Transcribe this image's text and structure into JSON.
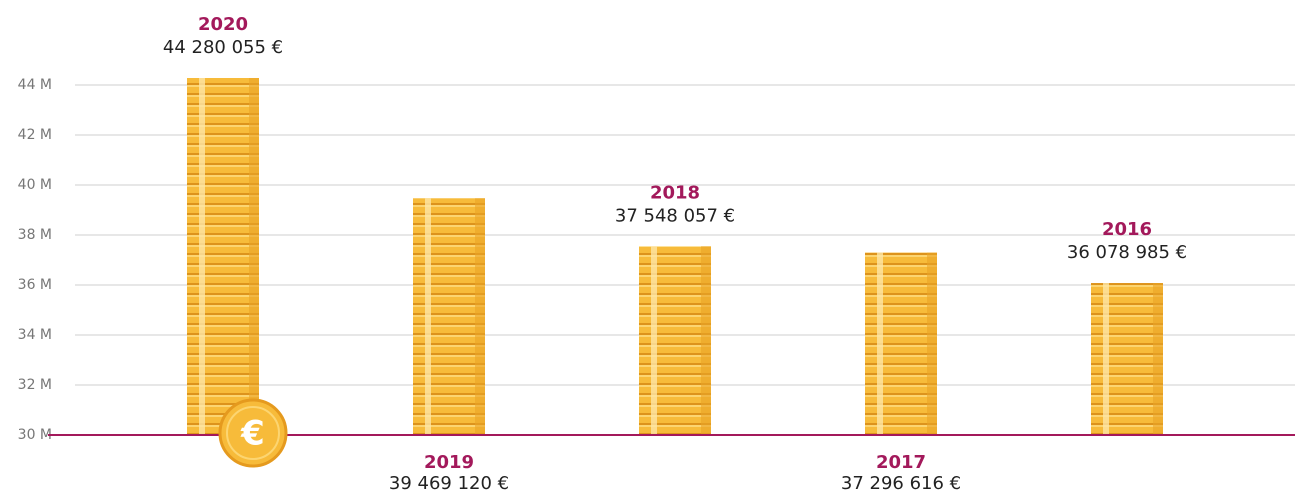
{
  "chart_data": {
    "type": "bar",
    "categories": [
      "2020",
      "2019",
      "2018",
      "2017",
      "2016"
    ],
    "values": [
      44280055,
      39469120,
      37548057,
      37296616,
      36078985
    ],
    "value_labels": [
      "44 280 055 €",
      "39 469 120 €",
      "37 548 057 €",
      "37 296 616 €",
      "36 078 985 €"
    ],
    "color": "#f7bb3a",
    "axis_color": "#a3195b",
    "badge": "€",
    "ylim": [
      30000000,
      47400000
    ],
    "yticks": [
      {
        "value": 30000000,
        "label": "30 M"
      },
      {
        "value": 32000000,
        "label": "32 M"
      },
      {
        "value": 34000000,
        "label": "34 M"
      },
      {
        "value": 36000000,
        "label": "36 M"
      },
      {
        "value": 38000000,
        "label": "38 M"
      },
      {
        "value": 40000000,
        "label": "40 M"
      },
      {
        "value": 42000000,
        "label": "42 M"
      },
      {
        "value": 44000000,
        "label": "44 M"
      }
    ],
    "grid": true
  }
}
